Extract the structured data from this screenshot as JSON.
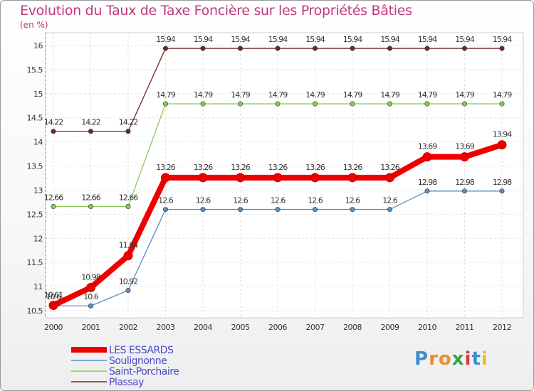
{
  "title": "Evolution du Taux de Taxe Foncière sur les Propriétés Bâties",
  "subtitle": "(en %)",
  "logo": {
    "p": "P",
    "r": "r",
    "o": "o",
    "x": "x",
    "i": "i",
    "t": "t",
    "i2": "i"
  },
  "chart_data": {
    "type": "line",
    "title": "Evolution du Taux de Taxe Foncière sur les Propriétés Bâties",
    "ylabel": "(en %)",
    "xlabel": "",
    "ylim": [
      10.5,
      16
    ],
    "yticks": [
      10.5,
      11,
      11.5,
      12,
      12.5,
      13,
      13.5,
      14,
      14.5,
      15,
      15.5,
      16
    ],
    "categories": [
      "2000",
      "2001",
      "2002",
      "2003",
      "2004",
      "2005",
      "2006",
      "2007",
      "2008",
      "2009",
      "2010",
      "2011",
      "2012"
    ],
    "series": [
      {
        "name": "LES ESSARDS",
        "color": "#ee0000",
        "values": [
          10.61,
          10.98,
          11.64,
          13.26,
          13.26,
          13.26,
          13.26,
          13.26,
          13.26,
          13.26,
          13.69,
          13.69,
          13.94
        ],
        "labels": [
          "10.61",
          "10.98",
          "11.64",
          "13.26",
          "13.26",
          "13.26",
          "13.26",
          "13.26",
          "13.26",
          "13.26",
          "13.69",
          "13.69",
          "13.94"
        ]
      },
      {
        "name": "Soulignonne",
        "color": "#5b8fc0",
        "values": [
          10.6,
          10.6,
          10.92,
          12.6,
          12.6,
          12.6,
          12.6,
          12.6,
          12.6,
          12.6,
          12.98,
          12.98,
          12.98
        ],
        "labels": [
          "10.6",
          "10.6",
          "10.92",
          "12.6",
          "12.6",
          "12.6",
          "12.6",
          "12.6",
          "12.6",
          "12.6",
          "12.98",
          "12.98",
          "12.98"
        ]
      },
      {
        "name": "Saint-Porchaire",
        "color": "#88cc55",
        "values": [
          12.66,
          12.66,
          12.66,
          14.79,
          14.79,
          14.79,
          14.79,
          14.79,
          14.79,
          14.79,
          14.79,
          14.79,
          14.79
        ],
        "labels": [
          "12.66",
          "12.66",
          "12.66",
          "14.79",
          "14.79",
          "14.79",
          "14.79",
          "14.79",
          "14.79",
          "14.79",
          "14.79",
          "14.79",
          "14.79"
        ]
      },
      {
        "name": "Plassay",
        "color": "#6a2a2a",
        "values": [
          14.22,
          14.22,
          14.22,
          15.94,
          15.94,
          15.94,
          15.94,
          15.94,
          15.94,
          15.94,
          15.94,
          15.94,
          15.94
        ],
        "labels": [
          "14.22",
          "14.22",
          "14.22",
          "15.94",
          "15.94",
          "15.94",
          "15.94",
          "15.94",
          "15.94",
          "15.94",
          "15.94",
          "15.94",
          "15.94"
        ]
      }
    ]
  }
}
